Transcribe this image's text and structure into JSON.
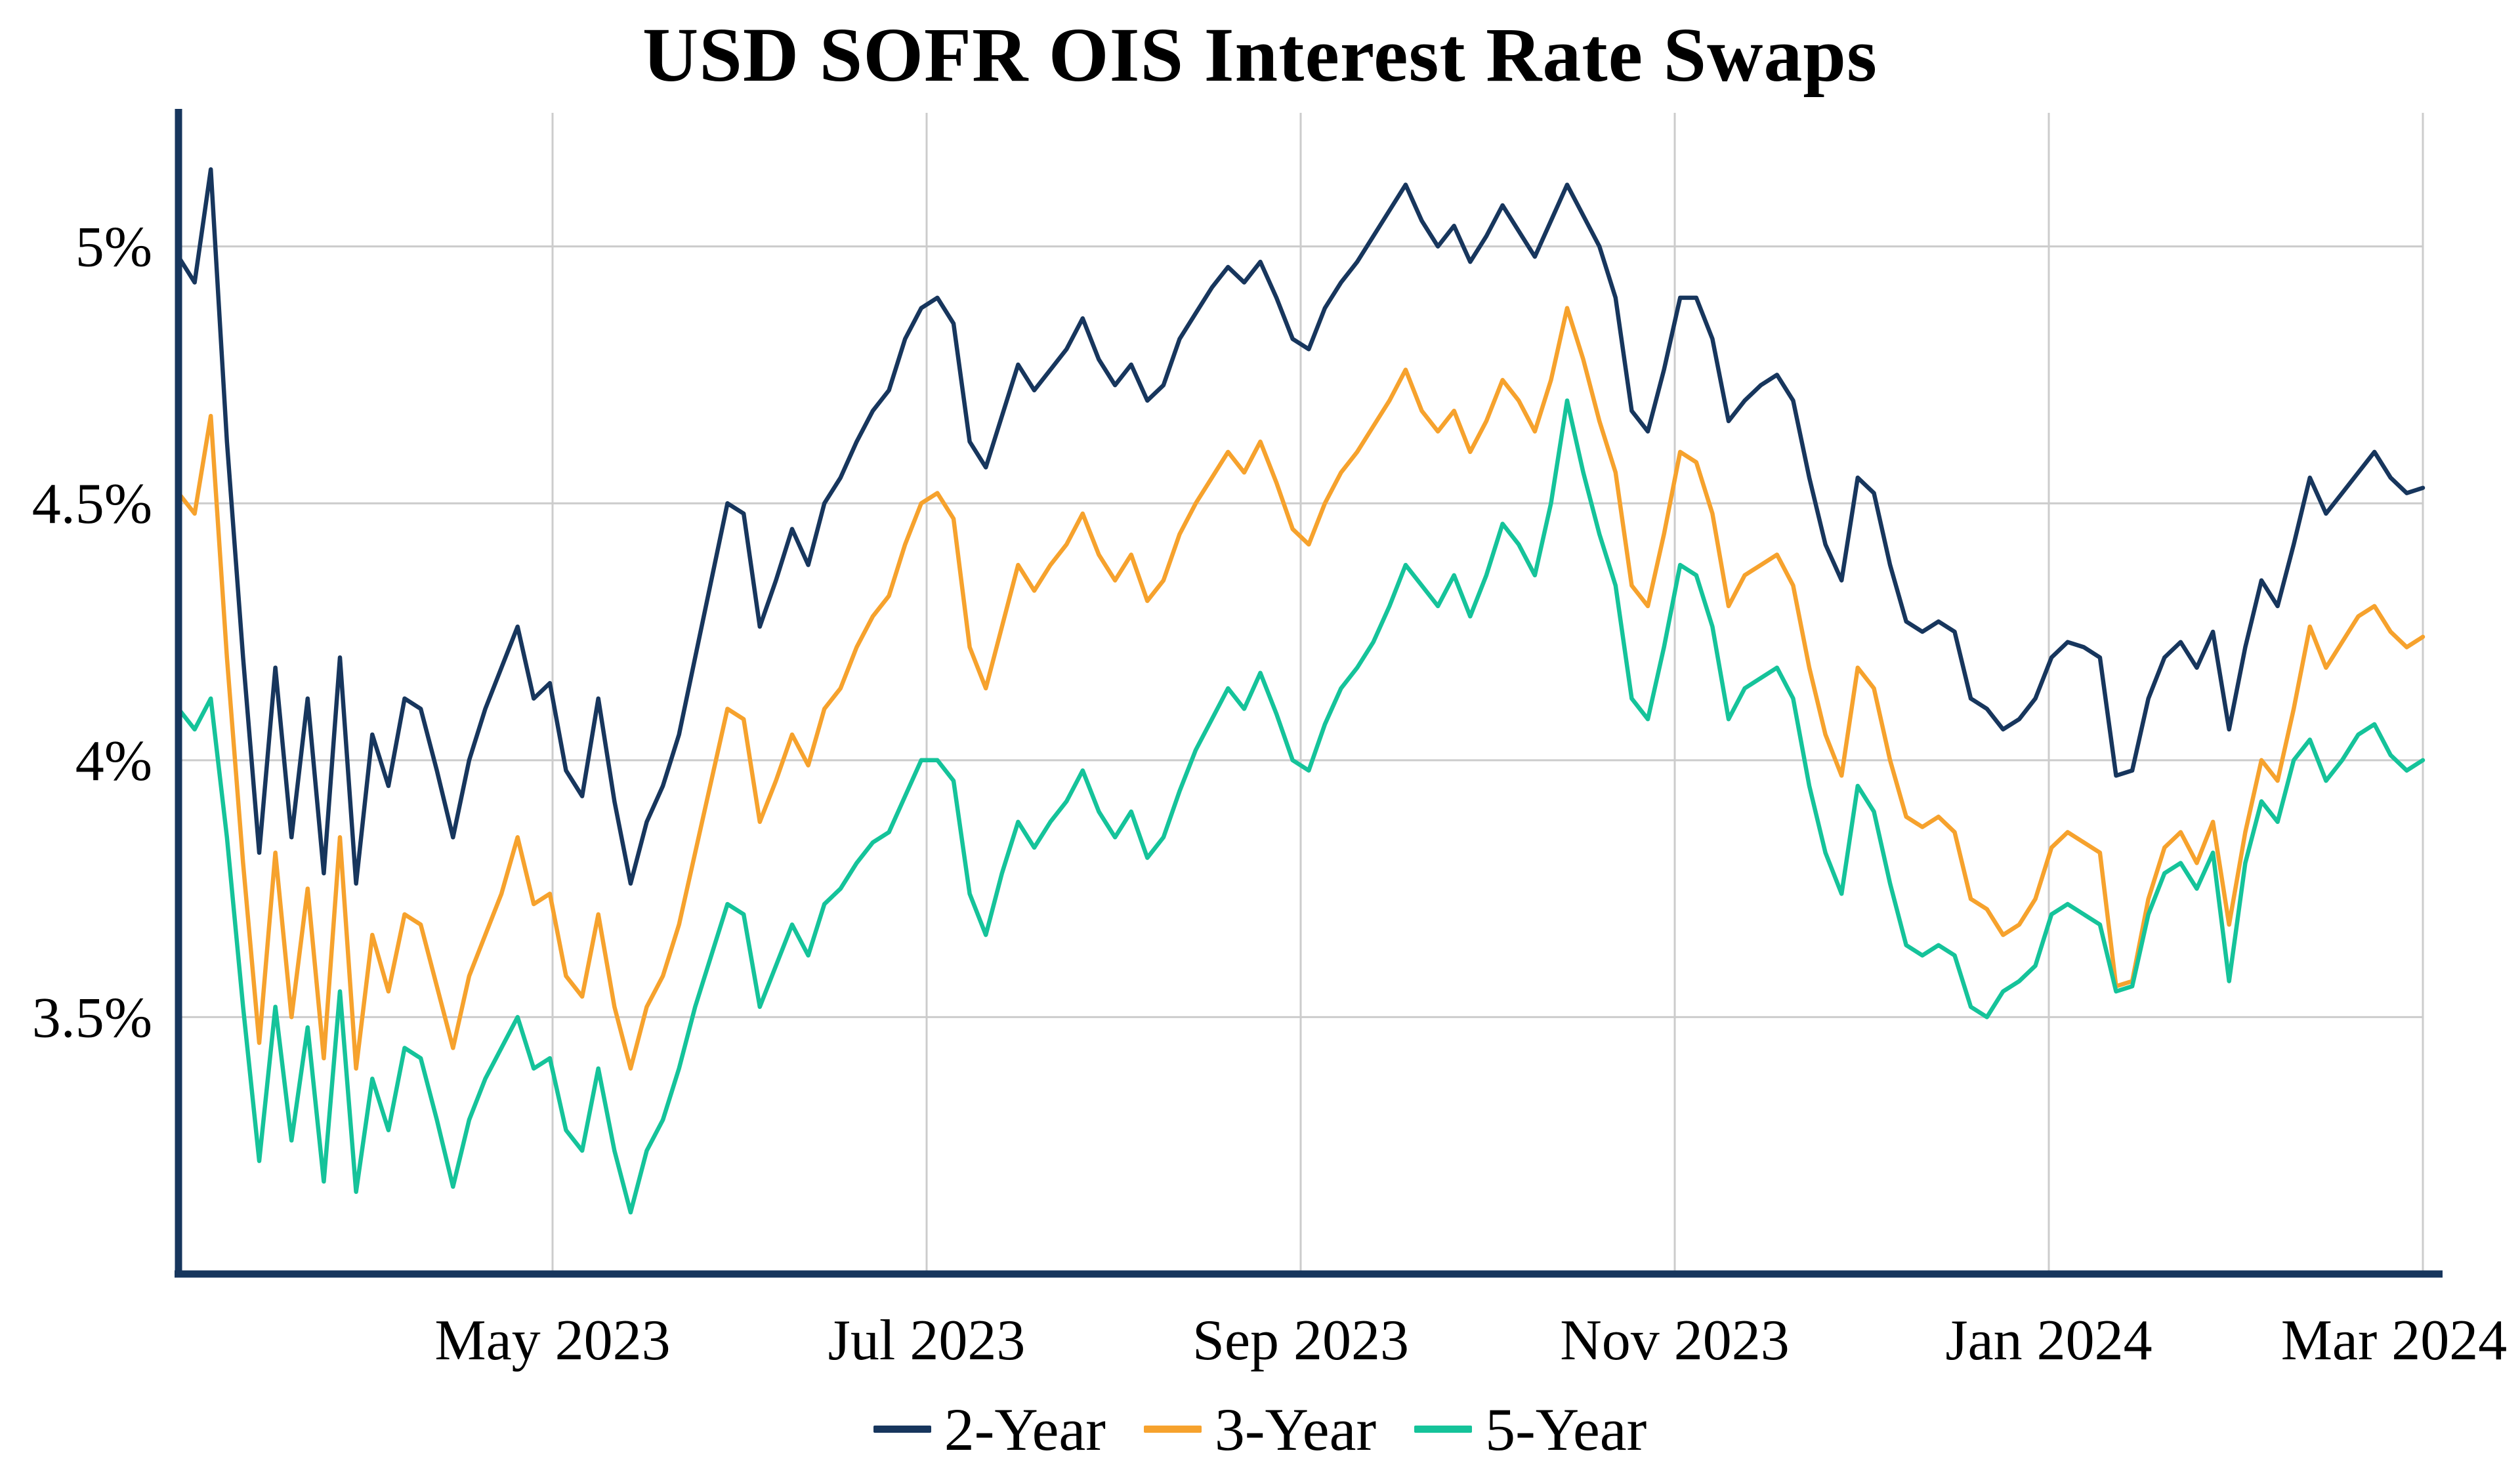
{
  "title": "USD SOFR OIS Interest Rate Swaps",
  "chart_data": {
    "type": "line",
    "title": "USD SOFR OIS Interest Rate Swaps",
    "xlabel": "",
    "ylabel": "",
    "grid": true,
    "legend_position": "bottom",
    "x_axis": {
      "range_months": [
        "Mar 2023",
        "Mar 2024"
      ],
      "months_span": 12,
      "ticks": [
        {
          "label": "May 2023",
          "month": 2
        },
        {
          "label": "Jul 2023",
          "month": 4
        },
        {
          "label": "Sep 2023",
          "month": 6
        },
        {
          "label": "Nov 2023",
          "month": 8
        },
        {
          "label": "Jan 2024",
          "month": 10
        },
        {
          "label": "Mar 2024",
          "month": 12
        }
      ]
    },
    "y_axis": {
      "unit": "%",
      "ylim": [
        3.0,
        5.26
      ],
      "ticks": [
        {
          "label": "3.5%",
          "value": 3.5
        },
        {
          "label": "4%",
          "value": 4.0
        },
        {
          "label": "4.5%",
          "value": 4.5
        },
        {
          "label": "5%",
          "value": 5.0
        }
      ]
    },
    "legend": [
      "2-Year",
      "3-Year",
      "5-Year"
    ],
    "series": [
      {
        "name": "2-Year",
        "color": "#17365D",
        "values": [
          4.98,
          4.93,
          5.15,
          4.62,
          4.2,
          3.82,
          4.18,
          3.85,
          4.12,
          3.78,
          4.2,
          3.76,
          4.05,
          3.95,
          4.12,
          4.1,
          3.98,
          3.85,
          4.0,
          4.1,
          4.18,
          4.26,
          4.12,
          4.15,
          3.98,
          3.93,
          4.12,
          3.92,
          3.76,
          3.88,
          3.95,
          4.05,
          4.2,
          4.35,
          4.5,
          4.48,
          4.26,
          4.35,
          4.45,
          4.38,
          4.5,
          4.55,
          4.62,
          4.68,
          4.72,
          4.82,
          4.88,
          4.9,
          4.85,
          4.62,
          4.57,
          4.67,
          4.77,
          4.72,
          4.76,
          4.8,
          4.86,
          4.78,
          4.73,
          4.77,
          4.7,
          4.73,
          4.82,
          4.87,
          4.92,
          4.96,
          4.93,
          4.97,
          4.9,
          4.82,
          4.8,
          4.88,
          4.93,
          4.97,
          5.02,
          5.07,
          5.12,
          5.05,
          5.0,
          5.04,
          4.97,
          5.02,
          5.08,
          5.03,
          4.98,
          5.05,
          5.12,
          5.06,
          5.0,
          4.9,
          4.68,
          4.64,
          4.76,
          4.9,
          4.9,
          4.82,
          4.66,
          4.7,
          4.73,
          4.75,
          4.7,
          4.55,
          4.42,
          4.35,
          4.55,
          4.52,
          4.38,
          4.27,
          4.25,
          4.27,
          4.25,
          4.12,
          4.1,
          4.06,
          4.08,
          4.12,
          4.2,
          4.23,
          4.22,
          4.2,
          3.97,
          3.98,
          4.12,
          4.2,
          4.23,
          4.18,
          4.25,
          4.06,
          4.22,
          4.35,
          4.3,
          4.42,
          4.55,
          4.48,
          4.52,
          4.56,
          4.6,
          4.55,
          4.52,
          4.53
        ]
      },
      {
        "name": "3-Year",
        "color": "#F6A22D",
        "values": [
          4.52,
          4.48,
          4.67,
          4.2,
          3.8,
          3.45,
          3.82,
          3.5,
          3.75,
          3.42,
          3.85,
          3.4,
          3.66,
          3.55,
          3.7,
          3.68,
          3.56,
          3.44,
          3.58,
          3.66,
          3.74,
          3.85,
          3.72,
          3.74,
          3.58,
          3.54,
          3.7,
          3.52,
          3.4,
          3.52,
          3.58,
          3.68,
          3.82,
          3.96,
          4.1,
          4.08,
          3.88,
          3.96,
          4.05,
          3.99,
          4.1,
          4.14,
          4.22,
          4.28,
          4.32,
          4.42,
          4.5,
          4.52,
          4.47,
          4.22,
          4.14,
          4.26,
          4.38,
          4.33,
          4.38,
          4.42,
          4.48,
          4.4,
          4.35,
          4.4,
          4.31,
          4.35,
          4.44,
          4.5,
          4.55,
          4.6,
          4.56,
          4.62,
          4.54,
          4.45,
          4.42,
          4.5,
          4.56,
          4.6,
          4.65,
          4.7,
          4.76,
          4.68,
          4.64,
          4.68,
          4.6,
          4.66,
          4.74,
          4.7,
          4.64,
          4.74,
          4.88,
          4.78,
          4.66,
          4.56,
          4.34,
          4.3,
          4.44,
          4.6,
          4.58,
          4.48,
          4.3,
          4.36,
          4.38,
          4.4,
          4.34,
          4.18,
          4.05,
          3.97,
          4.18,
          4.14,
          4.0,
          3.89,
          3.87,
          3.89,
          3.86,
          3.73,
          3.71,
          3.66,
          3.68,
          3.73,
          3.83,
          3.86,
          3.84,
          3.82,
          3.56,
          3.57,
          3.73,
          3.83,
          3.86,
          3.8,
          3.88,
          3.68,
          3.86,
          4.0,
          3.96,
          4.1,
          4.26,
          4.18,
          4.23,
          4.28,
          4.3,
          4.25,
          4.22,
          4.24
        ]
      },
      {
        "name": "5-Year",
        "color": "#15C39A",
        "values": [
          4.1,
          4.06,
          4.12,
          3.85,
          3.52,
          3.22,
          3.52,
          3.26,
          3.48,
          3.18,
          3.55,
          3.16,
          3.38,
          3.28,
          3.44,
          3.42,
          3.3,
          3.17,
          3.3,
          3.38,
          3.44,
          3.5,
          3.4,
          3.42,
          3.28,
          3.24,
          3.4,
          3.24,
          3.12,
          3.24,
          3.3,
          3.4,
          3.52,
          3.62,
          3.72,
          3.7,
          3.52,
          3.6,
          3.68,
          3.62,
          3.72,
          3.75,
          3.8,
          3.84,
          3.86,
          3.93,
          4.0,
          4.0,
          3.96,
          3.74,
          3.66,
          3.78,
          3.88,
          3.83,
          3.88,
          3.92,
          3.98,
          3.9,
          3.85,
          3.9,
          3.81,
          3.85,
          3.94,
          4.02,
          4.08,
          4.14,
          4.1,
          4.17,
          4.09,
          4.0,
          3.98,
          4.07,
          4.14,
          4.18,
          4.23,
          4.3,
          4.38,
          4.34,
          4.3,
          4.36,
          4.28,
          4.36,
          4.46,
          4.42,
          4.36,
          4.5,
          4.7,
          4.56,
          4.44,
          4.34,
          4.12,
          4.08,
          4.22,
          4.38,
          4.36,
          4.26,
          4.08,
          4.14,
          4.16,
          4.18,
          4.12,
          3.95,
          3.82,
          3.74,
          3.95,
          3.9,
          3.76,
          3.64,
          3.62,
          3.64,
          3.62,
          3.52,
          3.5,
          3.55,
          3.57,
          3.6,
          3.7,
          3.72,
          3.7,
          3.68,
          3.55,
          3.56,
          3.7,
          3.78,
          3.8,
          3.75,
          3.82,
          3.57,
          3.8,
          3.92,
          3.88,
          4.0,
          4.04,
          3.96,
          4.0,
          4.05,
          4.07,
          4.01,
          3.98,
          4.0
        ]
      }
    ]
  }
}
